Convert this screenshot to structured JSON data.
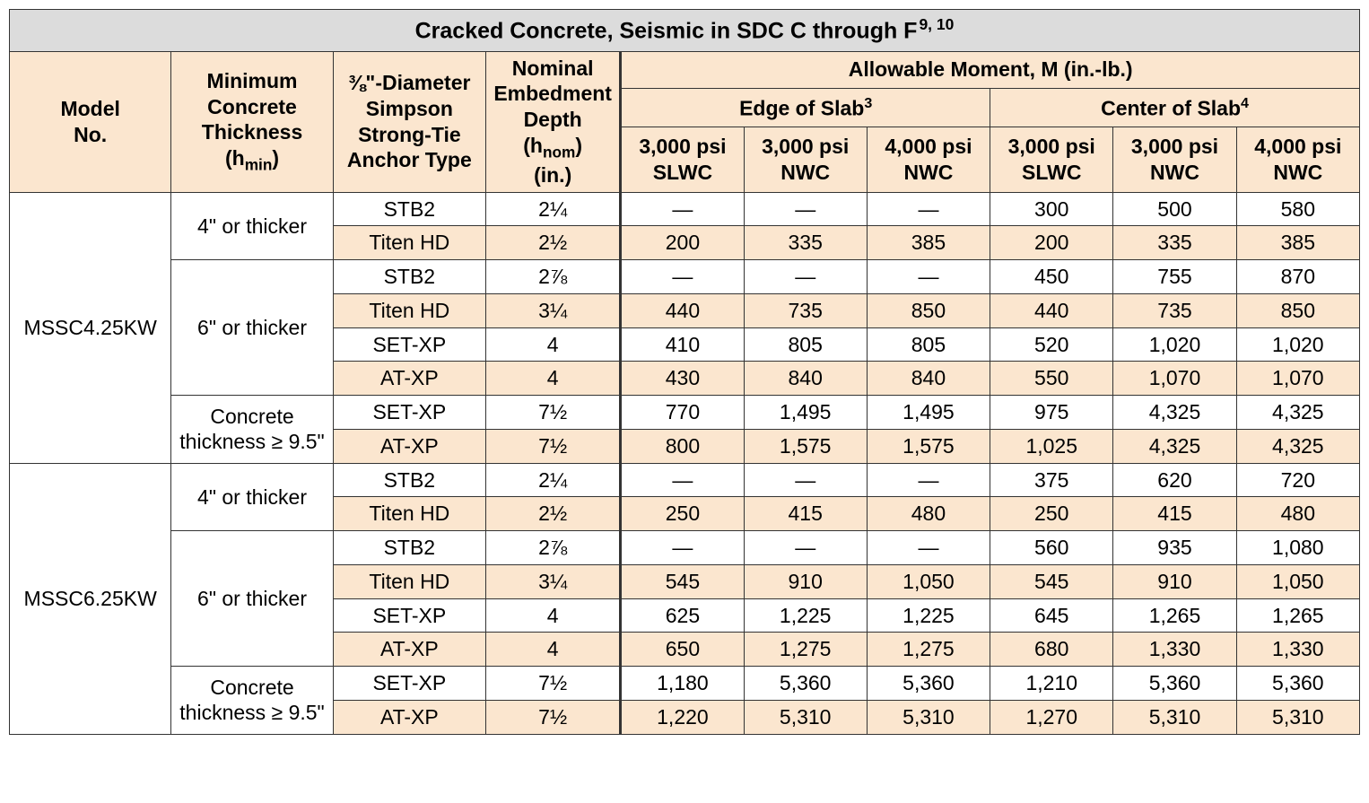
{
  "title": "Cracked Concrete, Seismic in SDC C through F",
  "title_sup": "9, 10",
  "headers": {
    "model": "Model\nNo.",
    "thickness": "Minimum\nConcrete\nThickness\n(h",
    "thickness_sub": "min",
    "thickness_end": ")",
    "anchor": "⅜\"-Diameter\nSimpson\nStrong-Tie\nAnchor Type",
    "embed": "Nominal\nEmbedment\nDepth\n(h",
    "embed_sub": "nom",
    "embed_end": ")\n(in.)",
    "moment": "Allowable Moment, M (in.-lb.)",
    "edge": "Edge of Slab",
    "edge_sup": "3",
    "center": "Center of Slab",
    "center_sup": "4",
    "c1": "3,000 psi\nSLWC",
    "c2": "3,000 psi\nNWC",
    "c3": "4,000 psi\nNWC",
    "c4": "3,000 psi\nSLWC",
    "c5": "3,000 psi\nNWC",
    "c6": "4,000 psi\nNWC"
  },
  "models": {
    "m1": "MSSC4.25KW",
    "m2": "MSSC6.25KW"
  },
  "thickness_groups": {
    "t4": "4\" or thicker",
    "t6": "6\" or thicker",
    "t95a": "Concrete",
    "t95b": "thickness ≥ 9.5\""
  },
  "rows": [
    {
      "anchor": "STB2",
      "embed": "2¼",
      "v": [
        "—",
        "—",
        "—",
        "300",
        "500",
        "580"
      ],
      "tint": false
    },
    {
      "anchor": "Titen HD",
      "embed": "2½",
      "v": [
        "200",
        "335",
        "385",
        "200",
        "335",
        "385"
      ],
      "tint": true
    },
    {
      "anchor": "STB2",
      "embed": "2⅞",
      "v": [
        "—",
        "—",
        "—",
        "450",
        "755",
        "870"
      ],
      "tint": false
    },
    {
      "anchor": "Titen HD",
      "embed": "3¼",
      "v": [
        "440",
        "735",
        "850",
        "440",
        "735",
        "850"
      ],
      "tint": true
    },
    {
      "anchor": "SET-XP",
      "embed": "4",
      "v": [
        "410",
        "805",
        "805",
        "520",
        "1,020",
        "1,020"
      ],
      "tint": false
    },
    {
      "anchor": "AT-XP",
      "embed": "4",
      "v": [
        "430",
        "840",
        "840",
        "550",
        "1,070",
        "1,070"
      ],
      "tint": true
    },
    {
      "anchor": "SET-XP",
      "embed": "7½",
      "v": [
        "770",
        "1,495",
        "1,495",
        "975",
        "4,325",
        "4,325"
      ],
      "tint": false
    },
    {
      "anchor": "AT-XP",
      "embed": "7½",
      "v": [
        "800",
        "1,575",
        "1,575",
        "1,025",
        "4,325",
        "4,325"
      ],
      "tint": true
    },
    {
      "anchor": "STB2",
      "embed": "2¼",
      "v": [
        "—",
        "—",
        "—",
        "375",
        "620",
        "720"
      ],
      "tint": false
    },
    {
      "anchor": "Titen HD",
      "embed": "2½",
      "v": [
        "250",
        "415",
        "480",
        "250",
        "415",
        "480"
      ],
      "tint": true
    },
    {
      "anchor": "STB2",
      "embed": "2⅞",
      "v": [
        "—",
        "—",
        "—",
        "560",
        "935",
        "1,080"
      ],
      "tint": false
    },
    {
      "anchor": "Titen HD",
      "embed": "3¼",
      "v": [
        "545",
        "910",
        "1,050",
        "545",
        "910",
        "1,050"
      ],
      "tint": true
    },
    {
      "anchor": "SET-XP",
      "embed": "4",
      "v": [
        "625",
        "1,225",
        "1,225",
        "645",
        "1,265",
        "1,265"
      ],
      "tint": false
    },
    {
      "anchor": "AT-XP",
      "embed": "4",
      "v": [
        "650",
        "1,275",
        "1,275",
        "680",
        "1,330",
        "1,330"
      ],
      "tint": true
    },
    {
      "anchor": "SET-XP",
      "embed": "7½",
      "v": [
        "1,180",
        "5,360",
        "5,360",
        "1,210",
        "5,360",
        "5,360"
      ],
      "tint": false
    },
    {
      "anchor": "AT-XP",
      "embed": "7½",
      "v": [
        "1,220",
        "5,310",
        "5,310",
        "1,270",
        "5,310",
        "5,310"
      ],
      "tint": true
    }
  ],
  "colors": {
    "tint": "#fbe6cf",
    "title_bg": "#dcdcdc",
    "border": "#333333"
  }
}
